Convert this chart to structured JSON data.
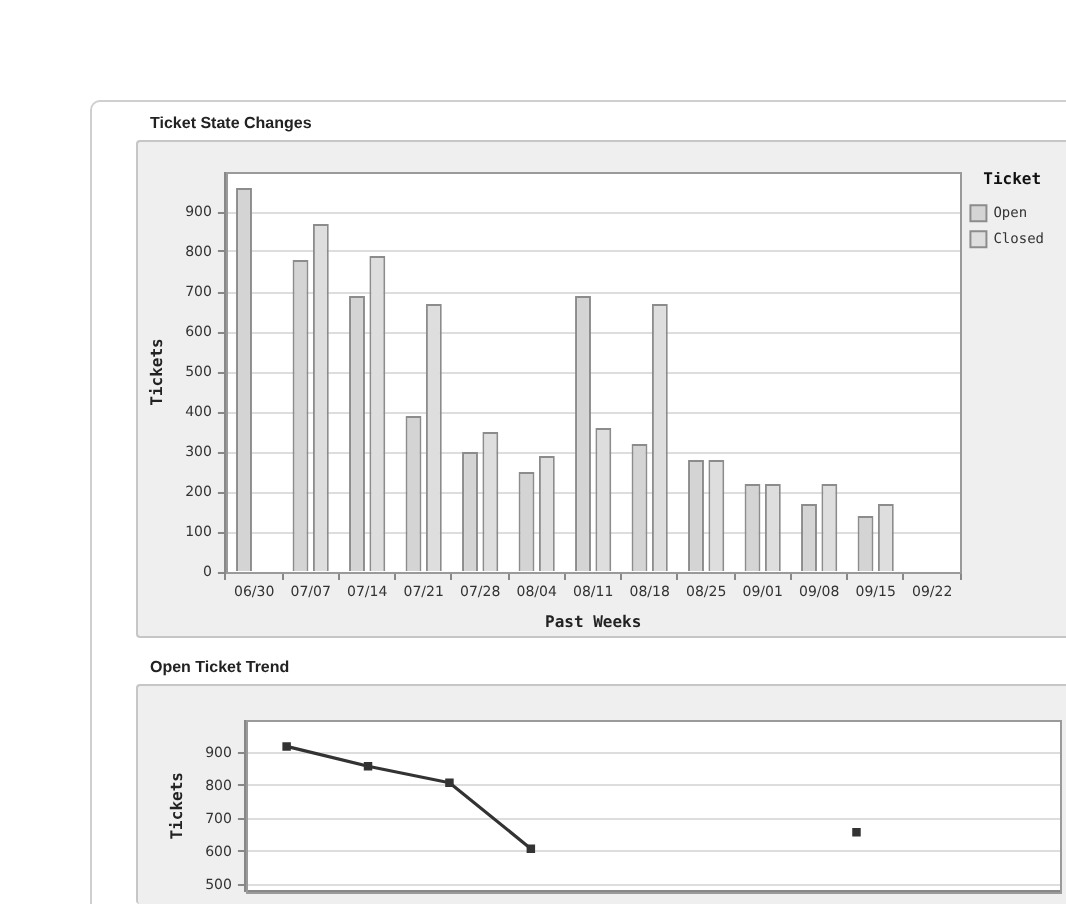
{
  "chart_data": [
    {
      "type": "bar",
      "title": "Ticket State Changes",
      "xlabel": "Past Weeks",
      "ylabel": "Tickets",
      "legend_title": "Ticket",
      "categories": [
        "06/30",
        "07/07",
        "07/14",
        "07/21",
        "07/28",
        "08/04",
        "08/11",
        "08/18",
        "08/25",
        "09/01",
        "09/08",
        "09/15",
        "09/22"
      ],
      "series": [
        {
          "name": "Open",
          "color": "#d4d4d4",
          "values": [
            960,
            780,
            690,
            390,
            300,
            250,
            690,
            320,
            280,
            220,
            170,
            140,
            null
          ]
        },
        {
          "name": "Closed",
          "color": "#dedede",
          "values": [
            0,
            870,
            790,
            670,
            350,
            290,
            360,
            670,
            280,
            220,
            220,
            170,
            null
          ]
        }
      ],
      "ylim": [
        0,
        1000
      ],
      "yticks": [
        0,
        100,
        200,
        300,
        400,
        500,
        600,
        700,
        800,
        900
      ],
      "grid": "y",
      "legend": "top right"
    },
    {
      "type": "line",
      "title": "Open Ticket Trend",
      "ylabel": "Tickets",
      "categories": [
        null,
        null,
        null,
        null,
        null,
        null,
        null,
        null,
        null,
        null
      ],
      "series": [
        {
          "color": "#333333",
          "values": [
            920,
            860,
            810,
            610,
            null,
            null,
            null,
            660,
            null,
            null
          ]
        }
      ],
      "ylim": [
        480,
        1000
      ],
      "yticks": [
        500,
        600,
        700,
        800,
        900
      ],
      "grid": "y",
      "marker": "square",
      "tick_labels": "y"
    }
  ]
}
